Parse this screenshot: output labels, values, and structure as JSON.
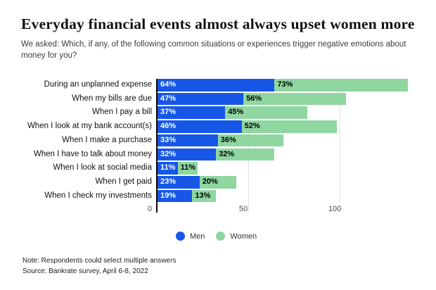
{
  "header": {
    "title": "Everyday financial events almost always upset women more",
    "subtitle": "We asked: Which, if any, of the following common situations or experiences trigger negative emotions about money for you?"
  },
  "chart_data": {
    "type": "bar",
    "orientation": "horizontal-stacked",
    "categories": [
      "During an unplanned expense",
      "When my bills are due",
      "When I pay a bill",
      "When I look at my bank account(s)",
      "When I make a purchase",
      "When I have to talk about money",
      "When I look at social media",
      "When I get paid",
      "When I check my investments"
    ],
    "series": [
      {
        "name": "Men",
        "color": "#1657e8",
        "label_color": "#ffffff",
        "values": [
          64,
          47,
          37,
          46,
          33,
          32,
          11,
          23,
          19
        ]
      },
      {
        "name": "Women",
        "color": "#8fd6a0",
        "label_color": "#000000",
        "values": [
          73,
          56,
          45,
          52,
          36,
          32,
          11,
          20,
          13
        ]
      }
    ],
    "value_unit": "%",
    "x_ticks": [
      0,
      50,
      100
    ],
    "xlim": [
      0,
      141
    ],
    "grid": "vertical",
    "legend_position": "bottom-center"
  },
  "notes": {
    "line1": "Note: Respondents could select multiple answers",
    "line2": "Source: Bankrate survey, April 6-8, 2022"
  }
}
